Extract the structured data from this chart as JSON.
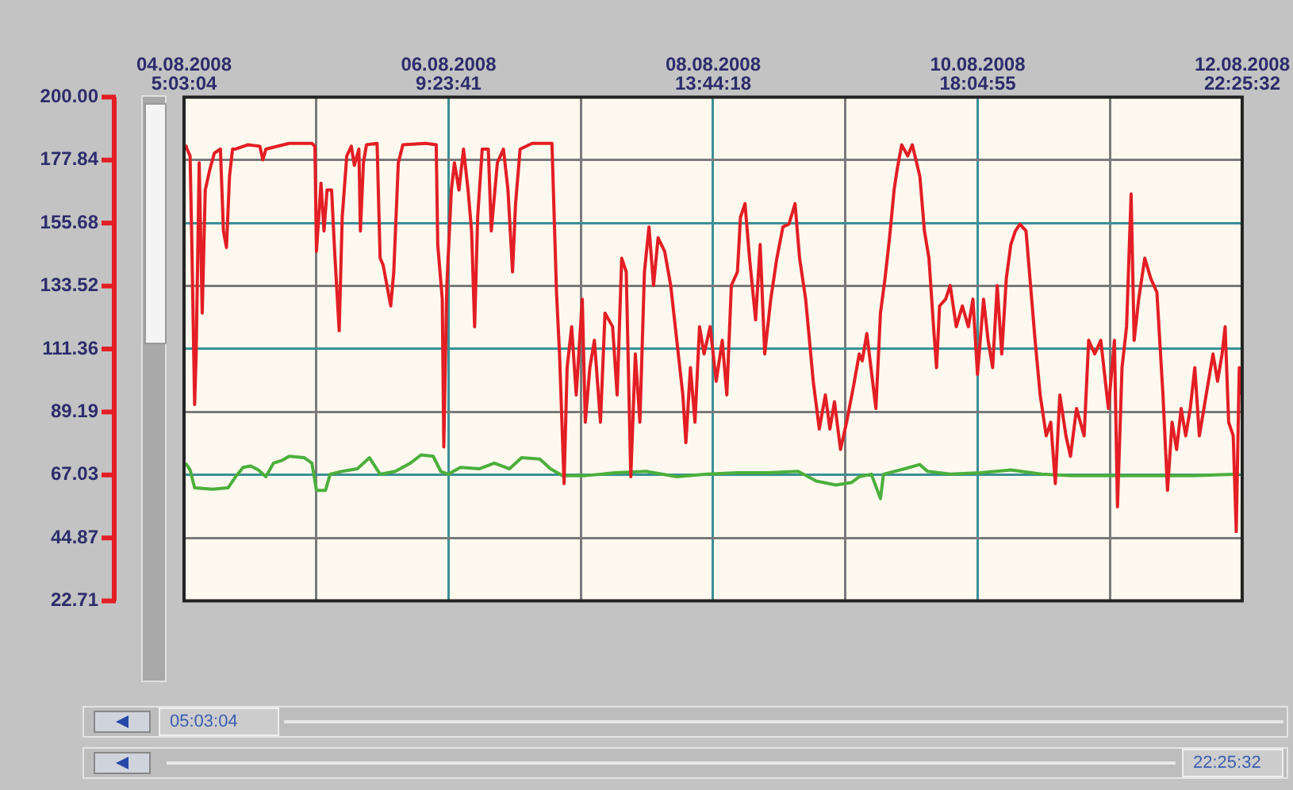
{
  "chart_data": {
    "type": "line",
    "grid": true,
    "legend": false,
    "marker": "none",
    "line_style": "solid",
    "xlim": [
      "2008-08-04T05:03:04",
      "2008-08-12T22:25:32"
    ],
    "ylim": [
      22.71,
      200
    ],
    "xticks": [
      {
        "value": "2008-08-04T05:03:04",
        "label": "04.08.2008 5:03:04"
      },
      {
        "value": "2008-08-05T07:13:22",
        "label": null
      },
      {
        "value": "2008-08-06T09:23:41",
        "label": "06.08.2008 9:23:41"
      },
      {
        "value": "2008-08-07T11:33:59",
        "label": null
      },
      {
        "value": "2008-08-08T13:44:18",
        "label": "08.08.2008 13:44:18"
      },
      {
        "value": "2008-08-09T15:54:36",
        "label": null
      },
      {
        "value": "2008-08-10T18:04:55",
        "label": "10.08.2008 18:04:55"
      },
      {
        "value": "2008-08-11T20:15:13",
        "label": null
      },
      {
        "value": "2008-08-12T22:25:32",
        "label": "12.08.2008 22:25:32"
      }
    ],
    "yticks": [
      22.71,
      44.87,
      67.03,
      89.19,
      111.36,
      133.52,
      155.68,
      177.84,
      {
        "value": 200,
        "label": "200.00"
      }
    ],
    "annotations": [
      "05:03:04",
      "22:25:32"
    ],
    "series": [
      {
        "color": "#e31e24",
        "x": [
          "2008-08-04T05:21",
          "2008-08-04T05:39",
          "2008-08-04T06:15",
          "2008-08-04T06:33",
          "2008-08-04T07:09",
          "2008-08-04T07:27",
          "2008-08-04T08:03",
          "2008-08-04T08:39",
          "2008-08-04T09:15",
          "2008-08-04T10:09",
          "2008-08-04T11:03",
          "2008-08-04T12:15",
          "2008-08-04T12:51",
          "2008-08-04T13:27",
          "2008-08-04T14:03",
          "2008-08-04T14:39",
          "2008-08-04T15:15",
          "2008-08-04T17:39",
          "2008-08-04T20:03",
          "2008-08-04T20:39",
          "2008-08-04T21:15",
          "2008-08-05T01:51",
          "2008-08-05T06:21",
          "2008-08-05T06:57",
          "2008-08-05T07:15",
          "2008-08-05T08:09",
          "2008-08-05T08:45",
          "2008-08-05T09:21",
          "2008-08-05T10:15",
          "2008-08-05T10:51",
          "2008-08-05T11:45",
          "2008-08-05T12:21",
          "2008-08-05T13:15",
          "2008-08-05T14:09",
          "2008-08-05T14:45",
          "2008-08-05T15:39",
          "2008-08-05T15:57",
          "2008-08-05T16:33",
          "2008-08-05T17:09",
          "2008-08-05T19:15",
          "2008-08-05T19:51",
          "2008-08-05T20:27",
          "2008-08-05T21:57",
          "2008-08-05T22:33",
          "2008-08-05T23:27",
          "2008-08-06T00:21",
          "2008-08-06T04:51",
          "2008-08-06T06:57",
          "2008-08-06T07:15",
          "2008-08-06T08:09",
          "2008-08-06T08:27",
          "2008-08-06T09:03",
          "2008-08-06T09:57",
          "2008-08-06T10:33",
          "2008-08-06T11:27",
          "2008-08-06T12:21",
          "2008-08-06T13:15",
          "2008-08-06T13:57",
          "2008-08-06T14:33",
          "2008-08-06T15:09",
          "2008-08-06T16:03",
          "2008-08-06T17:15",
          "2008-08-06T17:51",
          "2008-08-06T19:03",
          "2008-08-06T20:15",
          "2008-08-06T21:09",
          "2008-08-06T22:03",
          "2008-08-06T22:39",
          "2008-08-06T23:33",
          "2008-08-07T01:57",
          "2008-08-07T05:51",
          "2008-08-07T06:45",
          "2008-08-07T07:21",
          "2008-08-07T08:15",
          "2008-08-07T08:51",
          "2008-08-07T09:45",
          "2008-08-07T10:39",
          "2008-08-07T11:51",
          "2008-08-07T12:27",
          "2008-08-07T13:21",
          "2008-08-07T14:15",
          "2008-08-07T15:27",
          "2008-08-07T16:21",
          "2008-08-07T17:51",
          "2008-08-07T18:45",
          "2008-08-07T19:39",
          "2008-08-07T20:33",
          "2008-08-07T21:27",
          "2008-08-07T22:21",
          "2008-08-07T23:15",
          "2008-08-08T00:09",
          "2008-08-08T01:03",
          "2008-08-08T01:57",
          "2008-08-08T02:51",
          "2008-08-08T04:09",
          "2008-08-08T05:21",
          "2008-08-08T06:33",
          "2008-08-08T07:45",
          "2008-08-08T08:21",
          "2008-08-08T09:15",
          "2008-08-08T10:09",
          "2008-08-08T11:03",
          "2008-08-08T11:57",
          "2008-08-08T13:09",
          "2008-08-08T14:21",
          "2008-08-08T15:33",
          "2008-08-08T16:27",
          "2008-08-08T17:21",
          "2008-08-08T18:33",
          "2008-08-08T19:09",
          "2008-08-08T20:03",
          "2008-08-08T20:57",
          "2008-08-08T22:09",
          "2008-08-08T23:03",
          "2008-08-08T23:57",
          "2008-08-09T01:09",
          "2008-08-09T02:21",
          "2008-08-09T03:33",
          "2008-08-09T04:45",
          "2008-08-09T05:57",
          "2008-08-09T06:51",
          "2008-08-09T08:03",
          "2008-08-09T09:33",
          "2008-08-09T10:45",
          "2008-08-09T11:57",
          "2008-08-09T12:51",
          "2008-08-09T13:45",
          "2008-08-09T14:57",
          "2008-08-09T16:09",
          "2008-08-09T17:27",
          "2008-08-09T18:39",
          "2008-08-09T19:15",
          "2008-08-09T20:09",
          "2008-08-09T21:57",
          "2008-08-09T22:51",
          "2008-08-09T23:45",
          "2008-08-10T00:39",
          "2008-08-10T01:33",
          "2008-08-10T02:09",
          "2008-08-10T03:03",
          "2008-08-10T04:15",
          "2008-08-10T05:09",
          "2008-08-10T06:39",
          "2008-08-10T07:33",
          "2008-08-10T08:27",
          "2008-08-10T09:21",
          "2008-08-10T09:57",
          "2008-08-10T10:33",
          "2008-08-10T11:45",
          "2008-08-10T12:39",
          "2008-08-10T13:51",
          "2008-08-10T15:03",
          "2008-08-10T16:15",
          "2008-08-10T17:09",
          "2008-08-10T18:03",
          "2008-08-10T19:15",
          "2008-08-10T20:09",
          "2008-08-10T21:03",
          "2008-08-10T21:57",
          "2008-08-10T22:51",
          "2008-08-10T23:45",
          "2008-08-11T00:39",
          "2008-08-11T01:33",
          "2008-08-11T02:27",
          "2008-08-11T03:39",
          "2008-08-11T04:33",
          "2008-08-11T05:27",
          "2008-08-11T06:27",
          "2008-08-11T07:39",
          "2008-08-11T08:33",
          "2008-08-11T09:27",
          "2008-08-11T10:21",
          "2008-08-11T11:33",
          "2008-08-11T12:27",
          "2008-08-11T13:39",
          "2008-08-11T15:09",
          "2008-08-11T16:03",
          "2008-08-11T17:15",
          "2008-08-11T18:27",
          "2008-08-11T19:57",
          "2008-08-11T21:09",
          "2008-08-11T21:45",
          "2008-08-11T22:39",
          "2008-08-11T23:33",
          "2008-08-12T00:27",
          "2008-08-12T01:03",
          "2008-08-12T01:57",
          "2008-08-12T03:09",
          "2008-08-12T04:21",
          "2008-08-12T05:33",
          "2008-08-12T06:45",
          "2008-08-12T07:39",
          "2008-08-12T08:33",
          "2008-08-12T09:27",
          "2008-08-12T10:21",
          "2008-08-12T11:15",
          "2008-08-12T12:09",
          "2008-08-12T13:03",
          "2008-08-12T13:57",
          "2008-08-12T14:51",
          "2008-08-12T15:45",
          "2008-08-12T16:39",
          "2008-08-12T17:33",
          "2008-08-12T18:27",
          "2008-08-12T19:03",
          "2008-08-12T19:45",
          "2008-08-12T20:39",
          "2008-08-12T21:15",
          "2008-08-12T21:51",
          "2008-08-12T22:21"
        ],
        "values": [
          183.2,
          181.7,
          179.3,
          152.9,
          91.8,
          109.6,
          176.9,
          124.0,
          167.3,
          174.5,
          180.3,
          181.7,
          152.9,
          147.1,
          172.1,
          181.7,
          181.7,
          183.2,
          182.7,
          177.9,
          181.7,
          183.7,
          183.7,
          182.7,
          145.7,
          169.7,
          152.9,
          167.3,
          167.3,
          145.7,
          117.8,
          157.7,
          179.3,
          182.7,
          176.0,
          181.7,
          152.9,
          176.9,
          183.2,
          183.7,
          143.3,
          140.9,
          126.5,
          138.5,
          176.9,
          183.2,
          183.7,
          183.2,
          148.1,
          128.9,
          76.9,
          133.7,
          167.3,
          176.9,
          167.3,
          181.7,
          167.3,
          152.9,
          119.2,
          157.7,
          181.7,
          181.7,
          152.9,
          176.9,
          181.7,
          167.3,
          138.5,
          162.5,
          181.7,
          183.7,
          183.7,
          131.3,
          109.6,
          64.0,
          104.8,
          119.2,
          95.2,
          128.9,
          85.6,
          104.8,
          114.4,
          85.6,
          124.0,
          119.2,
          95.2,
          143.3,
          138.5,
          66.4,
          109.6,
          85.6,
          138.5,
          154.3,
          133.7,
          150.5,
          145.7,
          133.7,
          114.4,
          95.2,
          78.4,
          104.8,
          85.6,
          119.2,
          109.6,
          119.2,
          100.0,
          114.4,
          95.2,
          133.7,
          138.5,
          157.7,
          162.5,
          143.3,
          121.6,
          148.1,
          109.6,
          128.9,
          143.3,
          154.3,
          155.3,
          162.5,
          143.3,
          128.9,
          100.0,
          83.2,
          95.2,
          83.2,
          92.8,
          76.0,
          85.6,
          97.6,
          109.6,
          107.2,
          116.8,
          90.4,
          124.0,
          136.1,
          150.5,
          167.3,
          174.5,
          183.2,
          179.3,
          183.2,
          172.1,
          152.9,
          143.3,
          119.2,
          104.8,
          126.5,
          128.9,
          133.7,
          119.2,
          126.5,
          119.2,
          128.9,
          102.4,
          128.9,
          114.4,
          104.8,
          133.7,
          109.6,
          136.1,
          148.1,
          152.9,
          155.3,
          152.9,
          133.7,
          114.4,
          95.2,
          80.8,
          85.6,
          64.0,
          95.2,
          80.8,
          73.6,
          90.4,
          80.8,
          114.4,
          109.6,
          114.4,
          90.4,
          114.4,
          55.8,
          104.8,
          119.2,
          165.9,
          114.4,
          128.9,
          143.3,
          136.1,
          131.3,
          95.2,
          61.6,
          85.6,
          76.0,
          90.4,
          80.8,
          90.4,
          104.8,
          80.8,
          90.4,
          100.0,
          109.6,
          100.0,
          109.6,
          119.2,
          85.6,
          80.8,
          47.1,
          104.8,
          95.2
        ]
      },
      {
        "color": "#4caf3c",
        "x": [
          "2008-08-04T05:21",
          "2008-08-04T06:15",
          "2008-08-04T07:09",
          "2008-08-04T10:45",
          "2008-08-04T13:45",
          "2008-08-04T15:15",
          "2008-08-04T16:45",
          "2008-08-04T18:15",
          "2008-08-04T19:45",
          "2008-08-04T21:15",
          "2008-08-04T22:45",
          "2008-08-05T00:21",
          "2008-08-05T01:51",
          "2008-08-05T04:51",
          "2008-08-05T06:21",
          "2008-08-05T07:15",
          "2008-08-05T09:03",
          "2008-08-05T09:57",
          "2008-08-05T12:21",
          "2008-08-05T15:21",
          "2008-08-05T17:45",
          "2008-08-05T19:51",
          "2008-08-05T22:51",
          "2008-08-06T01:51",
          "2008-08-06T03:57",
          "2008-08-06T06:21",
          "2008-08-06T07:51",
          "2008-08-06T09:21",
          "2008-08-06T11:45",
          "2008-08-06T15:27",
          "2008-08-06T18:27",
          "2008-08-06T21:27",
          "2008-08-06T23:51",
          "2008-08-07T03:27",
          "2008-08-07T05:33",
          "2008-08-07T07:57",
          "2008-08-07T12:27",
          "2008-08-07T18:27",
          "2008-08-08T00:27",
          "2008-08-08T06:33",
          "2008-08-08T12:33",
          "2008-08-08T18:33",
          "2008-08-09T00:33",
          "2008-08-09T06:33",
          "2008-08-09T10:09",
          "2008-08-09T14:03",
          "2008-08-09T17:09",
          "2008-08-09T18:39",
          "2008-08-09T21:03",
          "2008-08-09T22:51",
          "2008-08-09T23:27",
          "2008-08-10T03:39",
          "2008-08-10T06:39",
          "2008-08-10T08:09",
          "2008-08-10T12:39",
          "2008-08-10T18:39",
          "2008-08-11T00:39",
          "2008-08-11T06:45",
          "2008-08-11T12:45",
          "2008-08-11T18:45",
          "2008-08-12T00:45",
          "2008-08-12T06:45",
          "2008-08-12T12:45",
          "2008-08-12T21:51"
        ],
        "values": [
          71.2,
          68.8,
          62.5,
          62.0,
          62.5,
          66.4,
          69.7,
          70.2,
          68.8,
          66.4,
          71.2,
          72.1,
          73.6,
          73.1,
          71.2,
          61.6,
          61.6,
          67.3,
          68.3,
          69.2,
          73.1,
          67.3,
          68.3,
          71.2,
          74.1,
          73.6,
          68.3,
          67.3,
          69.7,
          69.2,
          71.2,
          69.2,
          73.1,
          72.6,
          69.2,
          66.8,
          66.8,
          67.8,
          68.3,
          66.4,
          67.3,
          67.8,
          67.8,
          68.3,
          64.9,
          63.5,
          64.4,
          66.4,
          67.3,
          58.7,
          67.3,
          69.2,
          70.7,
          68.3,
          67.3,
          67.8,
          68.8,
          67.3,
          66.8,
          66.8,
          66.8,
          66.8,
          66.8,
          67.3
        ]
      }
    ]
  }
}
